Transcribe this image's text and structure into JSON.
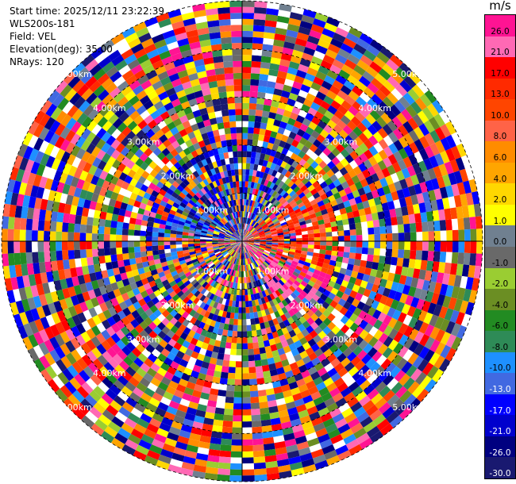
{
  "info": {
    "start_time": "Start time: 2025/12/11 23:22:39",
    "station": "WLS200s-181",
    "field": "Field: VEL",
    "elevation": "Elevation(deg): 35.00",
    "nrays": "NRays: 120"
  },
  "range_labels": [
    "1.00km",
    "2.00km",
    "3.00km",
    "4.00km",
    "5.00km"
  ],
  "colorbar": {
    "unit": "m/s",
    "ticks": [
      "26.0",
      "21.0",
      "17.0",
      "13.0",
      "10.0",
      "8.0",
      "6.0",
      "4.0",
      "2.0",
      "1.0",
      "0.0",
      "-1.0",
      "-2.0",
      "-4.0",
      "-6.0",
      "-8.0",
      "-10.0",
      "-13.0",
      "-17.0",
      "-21.0",
      "-26.0",
      "-30.0"
    ],
    "colors": [
      "#ff1493",
      "#ff69b4",
      "#ff0000",
      "#ff2a00",
      "#ff4500",
      "#ff6347",
      "#ff8c00",
      "#ffa500",
      "#ffd700",
      "#ffff00",
      "#708090",
      "#696969",
      "#9acd32",
      "#6b8e23",
      "#228b22",
      "#2e8b57",
      "#1e90ff",
      "#4169e1",
      "#0000ff",
      "#0000cd",
      "#000080",
      "#191970"
    ]
  }
}
